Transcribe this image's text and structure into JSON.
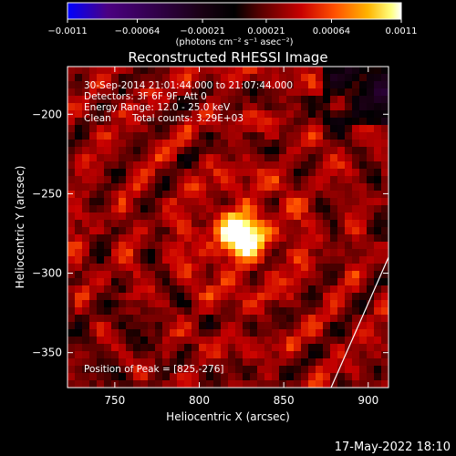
{
  "chart_data": {
    "type": "heatmap",
    "title": "Reconstructed RHESSI Image",
    "xlabel": "Heliocentric X (arcsec)",
    "ylabel": "Heliocentric Y (arcsec)",
    "xlim": [
      722,
      912
    ],
    "ylim": [
      -372,
      -170
    ],
    "x_ticks": [
      750,
      800,
      850,
      900
    ],
    "y_ticks": [
      -200,
      -250,
      -300,
      -350
    ],
    "x_tick_labels": [
      "750",
      "800",
      "850",
      "900"
    ],
    "y_tick_labels": [
      "−200",
      "−250",
      "−300",
      "−350"
    ],
    "peak": {
      "x": 825,
      "y": -276
    },
    "limb_line": [
      {
        "x": 878,
        "y": -372
      },
      {
        "x": 912,
        "y": -290
      }
    ],
    "colorbar": {
      "min": -0.0011,
      "max": 0.0011,
      "tick_values": [
        -0.0011,
        -0.00064,
        -0.00021,
        0.00021,
        0.00064,
        0.0011
      ],
      "tick_labels": [
        "−0.0011",
        "−0.00064",
        "−0.00021",
        "0.00021",
        "0.00064",
        "0.0011"
      ],
      "units": "(photons cm⁻² s⁻¹ asec⁻²)",
      "colors": [
        "#0000ff",
        "#4b0082",
        "#1a0014",
        "#000000",
        "#5a0000",
        "#c80000",
        "#ff5000",
        "#ffb400",
        "#ffff80",
        "#ffffff"
      ]
    },
    "annotations": [
      "30-Sep-2014 21:01:44.000 to 21:07:44.000",
      "Detectors: 3F 6F 9F, Att 0",
      "Energy Range: 12.0 - 25.0 keV",
      "Clean",
      "Total counts: 3.29E+03"
    ],
    "peak_label": "Position of Peak = [825,-276]"
  },
  "footer": {
    "timestamp": "17-May-2022 18:10"
  }
}
